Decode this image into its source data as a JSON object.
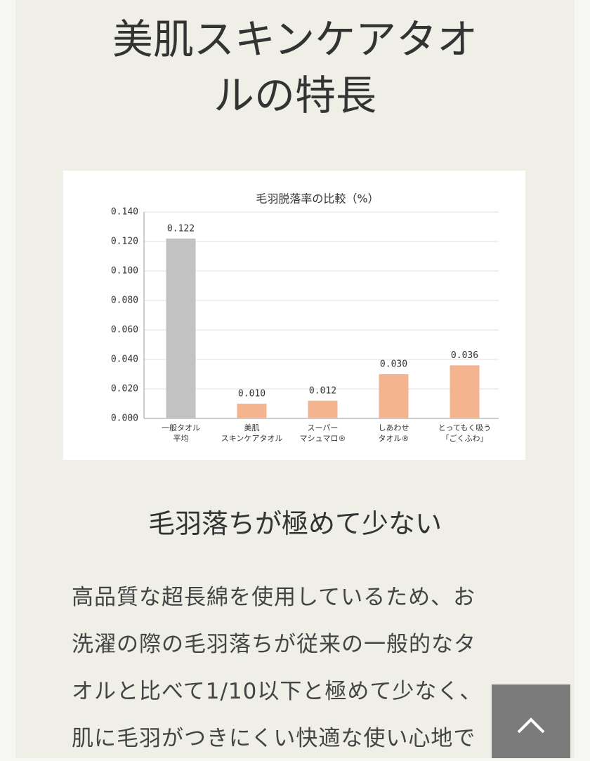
{
  "header": {
    "title_lines": [
      "美肌スキンケアタオ",
      "ルの特長"
    ]
  },
  "chart_data": {
    "type": "bar",
    "title": "毛羽脱落率の比較（%）",
    "categories": [
      "一般タオル\n平均",
      "美肌\nスキンケアタオル",
      "スーパー\nマシュマロ®",
      "しあわせ\nタオル®",
      "とってもく吸う\n「ごくふわ」"
    ],
    "values": [
      0.122,
      0.01,
      0.012,
      0.03,
      0.036
    ],
    "value_labels": [
      "0.122",
      "0.010",
      "0.012",
      "0.030",
      "0.036"
    ],
    "colors": [
      "#c2c2c2",
      "#f4b48f",
      "#f4b48f",
      "#f4b48f",
      "#f4b48f"
    ],
    "ylim": [
      0,
      0.14
    ],
    "yticks": [
      {
        "value": 0,
        "label": "0.000"
      },
      {
        "value": 0.02,
        "label": "0.020"
      },
      {
        "value": 0.04,
        "label": "0.040"
      },
      {
        "value": 0.06,
        "label": "0.060"
      },
      {
        "value": 0.08,
        "label": "0.080"
      },
      {
        "value": 0.1,
        "label": "0.100"
      },
      {
        "value": 0.12,
        "label": "0.120"
      },
      {
        "value": 0.14,
        "label": "0.140"
      }
    ],
    "grid": true
  },
  "section": {
    "heading": "毛羽落ちが極めて少ない",
    "body_lines": [
      "高品質な超長綿を使用しているため、お",
      "洗濯の際の毛羽落ちが従来の一般的なタ",
      "オルと比べて1/10以下と極めて少なく、",
      "肌に毛羽がつきにくい快適な使い心地で"
    ]
  }
}
